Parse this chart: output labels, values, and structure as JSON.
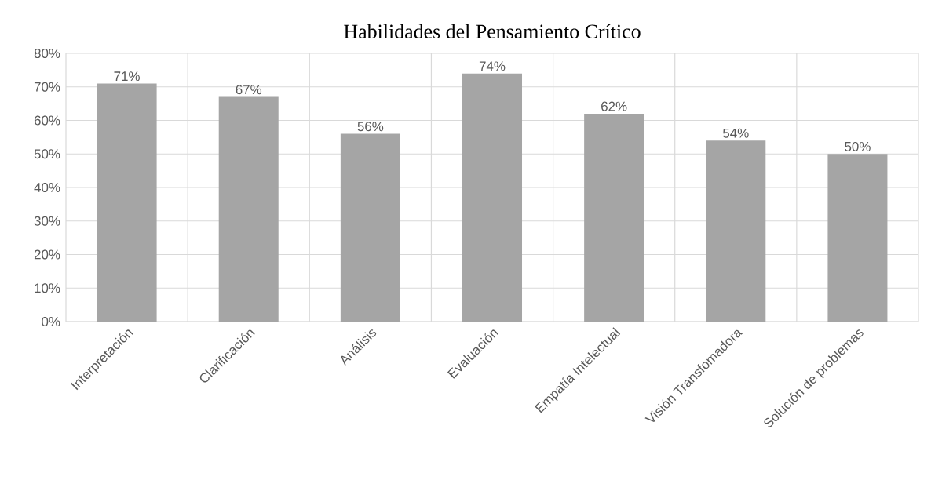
{
  "chart_data": {
    "type": "bar",
    "title": "Habilidades del Pensamiento Crítico",
    "categories": [
      "Interpretación",
      "Clarificación",
      "Análisis",
      "Evaluación",
      "Empatía Intelectual",
      "Visión Transfomadora",
      "Solución de problemas"
    ],
    "values": [
      71,
      67,
      56,
      74,
      62,
      54,
      50
    ],
    "value_labels": [
      "71%",
      "67%",
      "56%",
      "74%",
      "62%",
      "54%",
      "50%"
    ],
    "color": "#a5a5a5",
    "ylim": [
      0,
      80
    ],
    "yticks": [
      {
        "value": 0,
        "label": "0%"
      },
      {
        "value": 10,
        "label": "10%"
      },
      {
        "value": 20,
        "label": "20%"
      },
      {
        "value": 30,
        "label": "30%"
      },
      {
        "value": 40,
        "label": "40%"
      },
      {
        "value": 50,
        "label": "50%"
      },
      {
        "value": 60,
        "label": "60%"
      },
      {
        "value": 70,
        "label": "70%"
      },
      {
        "value": 80,
        "label": "80%"
      }
    ],
    "grid": true
  }
}
